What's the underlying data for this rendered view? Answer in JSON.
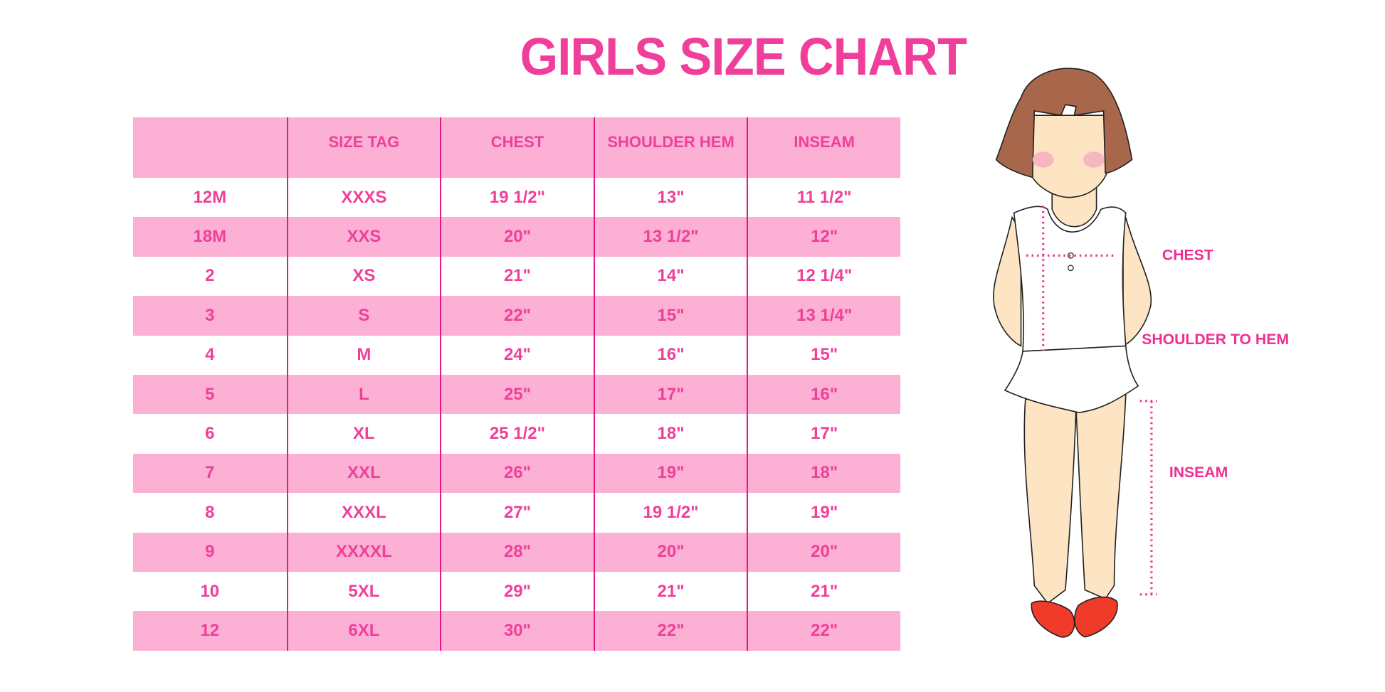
{
  "title": "GIRLS SIZE CHART",
  "colors": {
    "header_bg": "#fbb0d4",
    "text": "#f03f9b",
    "divider": "#e8168a"
  },
  "table": {
    "headers": [
      "",
      "SIZE TAG",
      "CHEST",
      "SHOULDER HEM",
      "INSEAM"
    ],
    "rows": [
      [
        "12M",
        "XXXS",
        "19 1/2\"",
        "13\"",
        "11 1/2\""
      ],
      [
        "18M",
        "XXS",
        "20\"",
        "13 1/2\"",
        "12\""
      ],
      [
        "2",
        "XS",
        "21\"",
        "14\"",
        "12 1/4\""
      ],
      [
        "3",
        "S",
        "22\"",
        "15\"",
        "13 1/4\""
      ],
      [
        "4",
        "M",
        "24\"",
        "16\"",
        "15\""
      ],
      [
        "5",
        "L",
        "25\"",
        "17\"",
        "16\""
      ],
      [
        "6",
        "XL",
        "25 1/2\"",
        "18\"",
        "17\""
      ],
      [
        "7",
        "XXL",
        "26\"",
        "19\"",
        "18\""
      ],
      [
        "8",
        "XXXL",
        "27\"",
        "19 1/2\"",
        "19\""
      ],
      [
        "9",
        "XXXXL",
        "28\"",
        "20\"",
        "20\""
      ],
      [
        "10",
        "5XL",
        "29\"",
        "21\"",
        "21\""
      ],
      [
        "12",
        "6XL",
        "30\"",
        "22\"",
        "22\""
      ]
    ]
  },
  "figure": {
    "labels": {
      "chest": "CHEST",
      "shoulder_to_hem": "SHOULDER TO HEM",
      "inseam": "INSEAM"
    }
  }
}
